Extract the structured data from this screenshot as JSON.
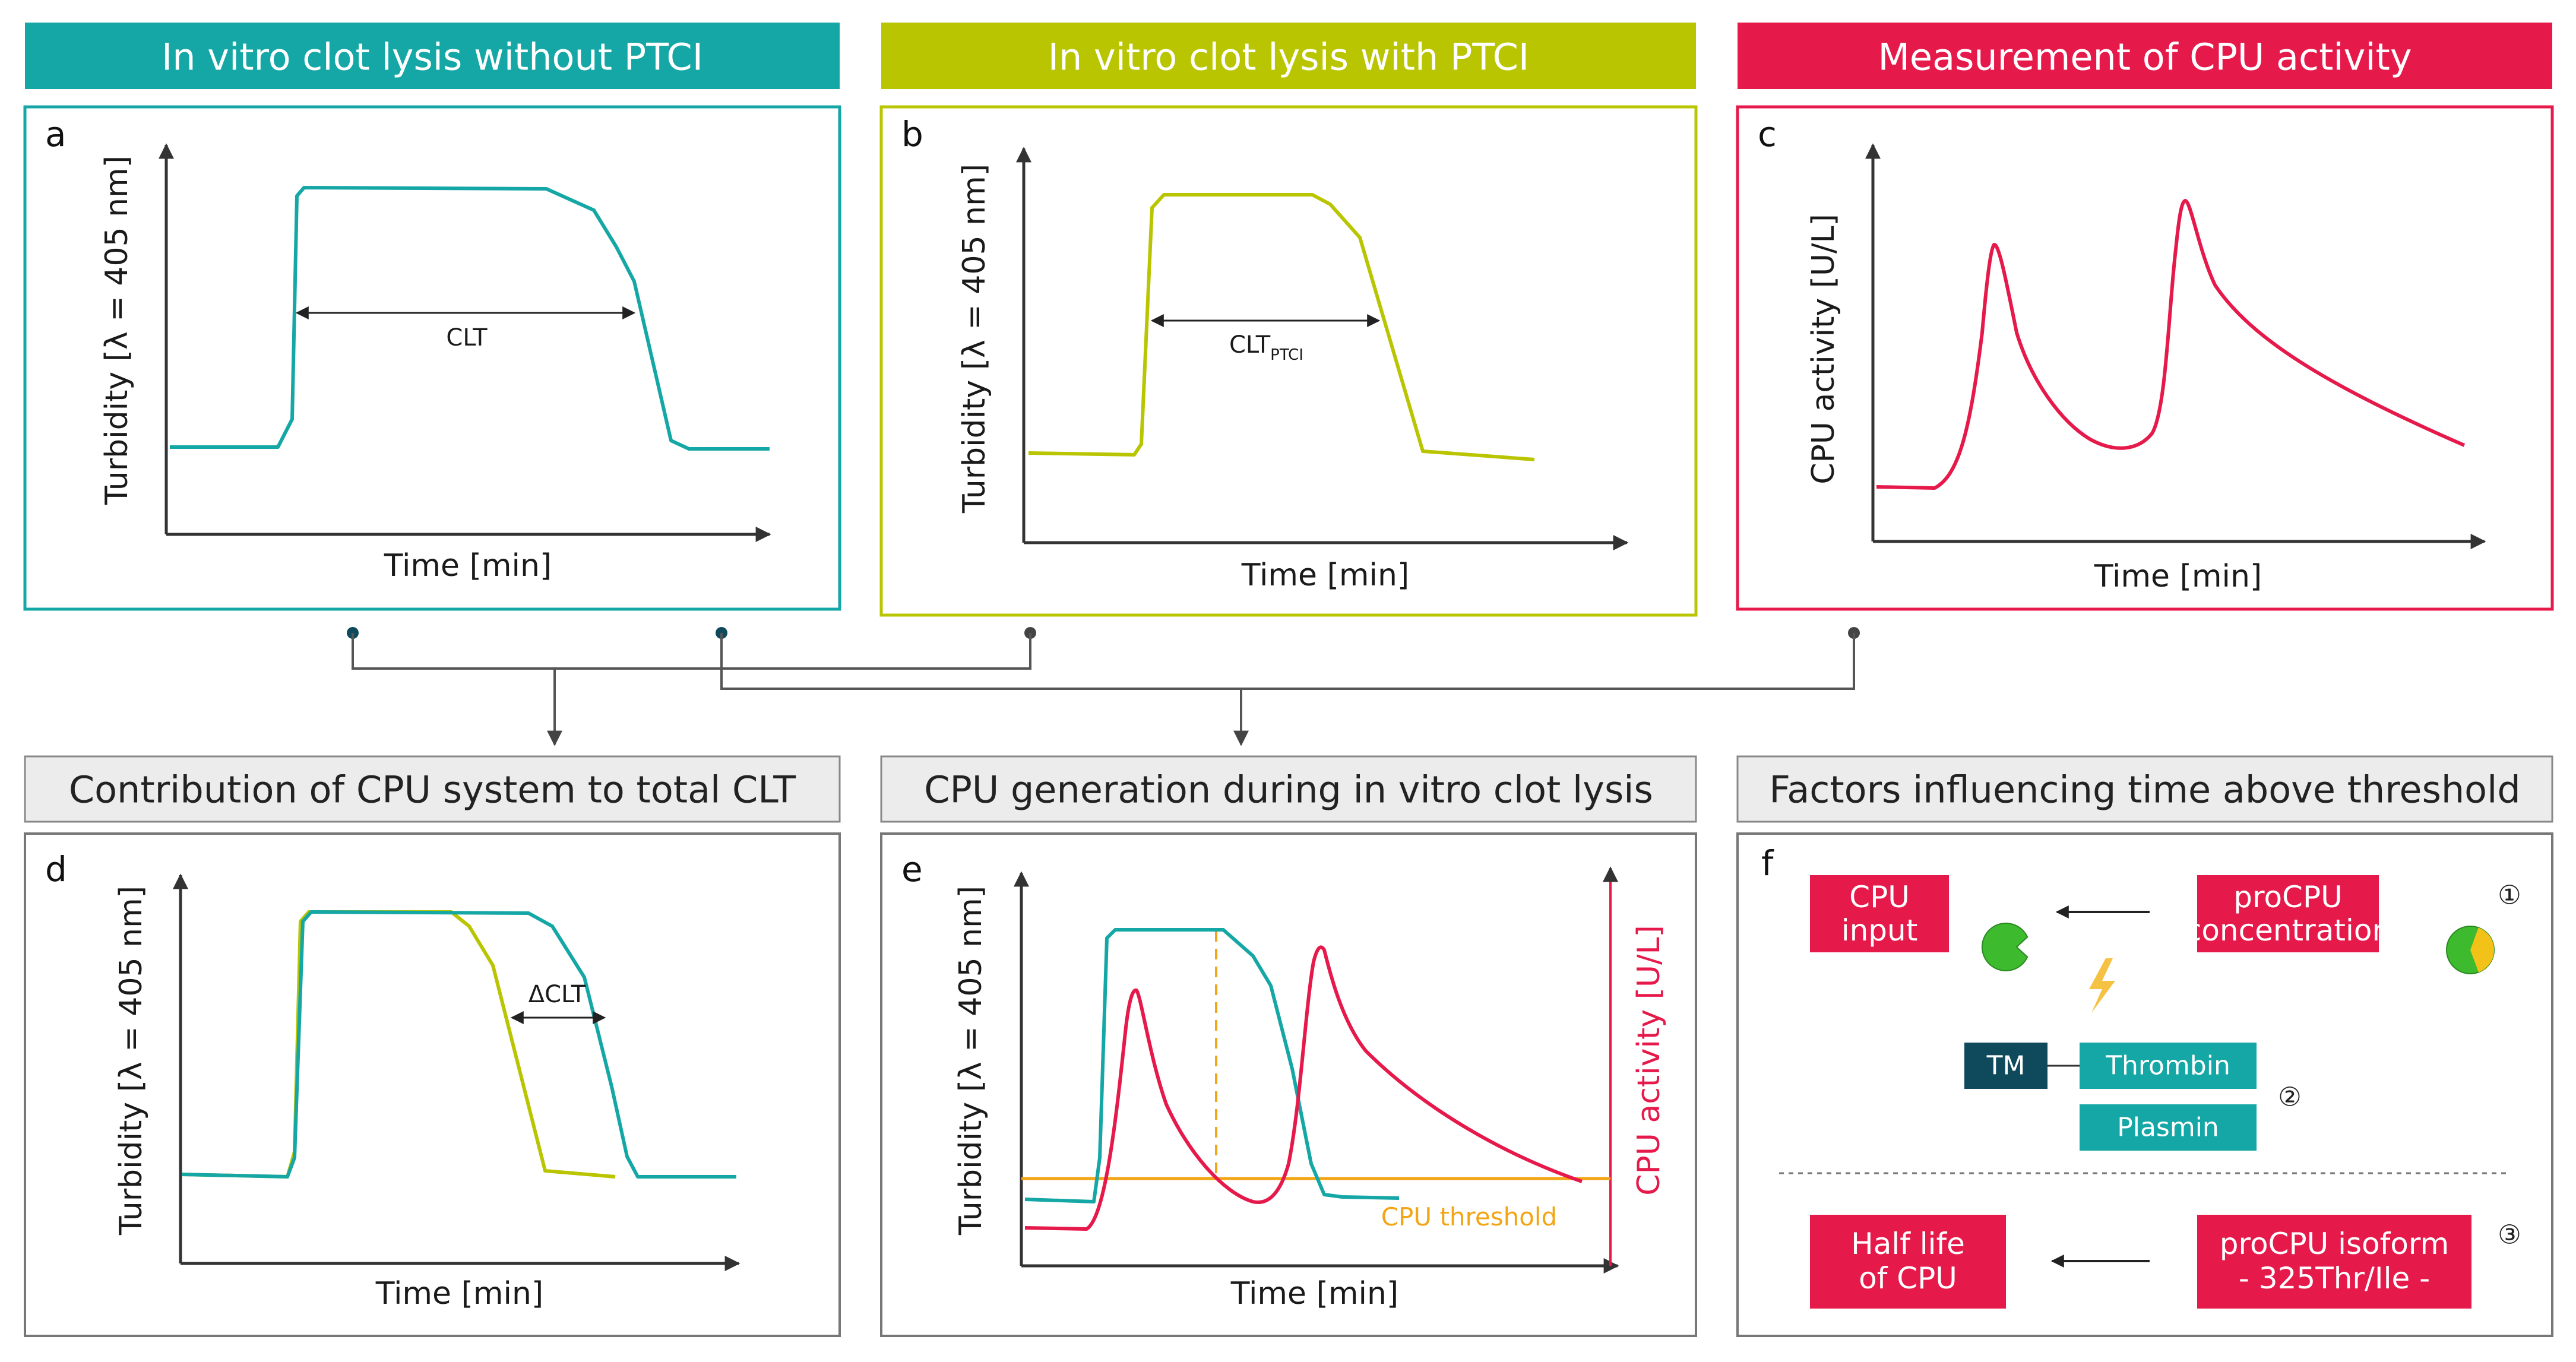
{
  "colors": {
    "teal": "#15A7A6",
    "olive": "#B9C500",
    "crimson": "#E6194B",
    "gray_header": "#ECECEC",
    "orange": "#F2A515",
    "navy": "#0E4A5C",
    "green": "#3DBA2E"
  },
  "headers": {
    "a": "In vitro clot lysis without PTCI",
    "b": "In vitro clot lysis with PTCI",
    "c": "Measurement of CPU activity",
    "d": "Contribution of CPU system to total CLT",
    "e": "CPU generation during in vitro clot lysis",
    "f": "Factors influencing time above threshold"
  },
  "panels": {
    "a": {
      "letter": "a",
      "ylabel": "Turbidity [λ = 405 nm]",
      "xlabel": "Time [min]",
      "annotation": "CLT"
    },
    "b": {
      "letter": "b",
      "ylabel": "Turbidity [λ = 405 nm]",
      "xlabel": "Time [min]",
      "annotation_main": "CLT",
      "annotation_sub": "PTCI"
    },
    "c": {
      "letter": "c",
      "ylabel": "CPU activity [U/L]",
      "xlabel": "Time [min]"
    },
    "d": {
      "letter": "d",
      "ylabel": "Turbidity [λ = 405 nm]",
      "xlabel": "Time [min]",
      "annotation": "ΔCLT"
    },
    "e": {
      "letter": "e",
      "ylabel": "Turbidity [λ = 405 nm]",
      "ylabel_right": "CPU activity [U/L]",
      "xlabel": "Time [min]",
      "threshold_label": "CPU threshold"
    },
    "f": {
      "letter": "f",
      "cpu_input": [
        "CPU",
        "input"
      ],
      "procpu_concentration": [
        "proCPU",
        "concentration"
      ],
      "tm": "TM",
      "thrombin": "Thrombin",
      "plasmin": "Plasmin",
      "half_life": [
        "Half life",
        "of CPU"
      ],
      "procpu_isoform": [
        "proCPU isoform",
        "- 325Thr/Ile -"
      ],
      "num1": "①",
      "num2": "②",
      "num3": "③"
    }
  }
}
